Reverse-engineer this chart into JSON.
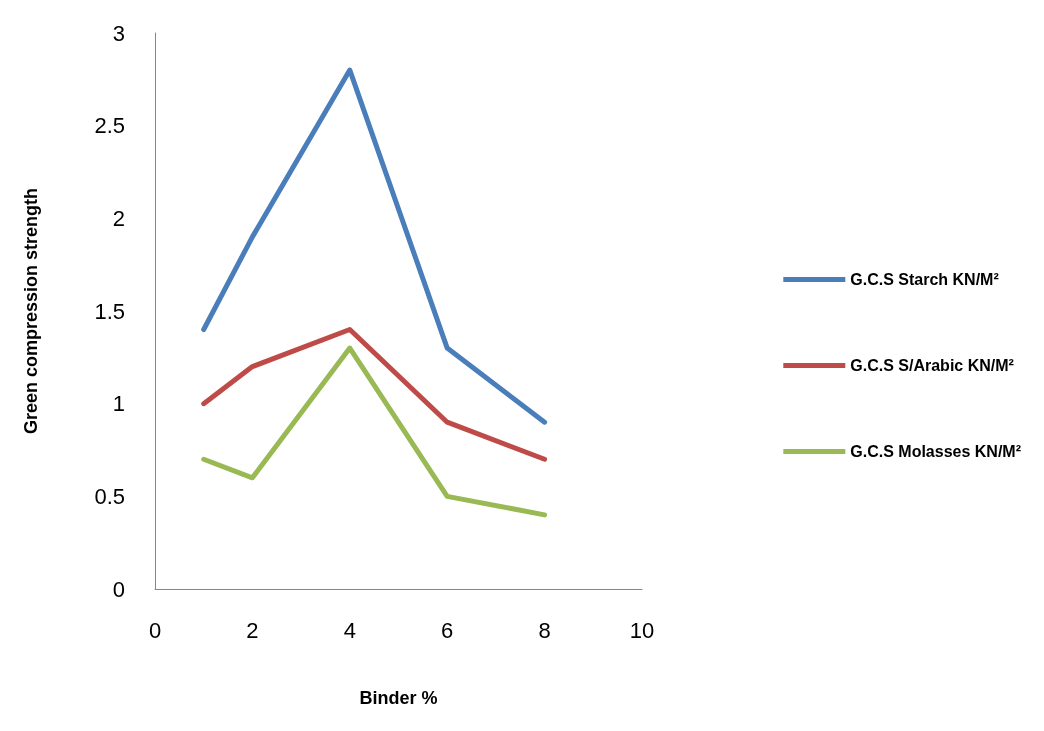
{
  "chart_data": {
    "type": "line",
    "xlabel": "Binder %",
    "ylabel": "Green compression strength",
    "x": [
      1,
      2,
      4,
      6,
      8
    ],
    "series": [
      {
        "name": "G.C.S Starch KN/M²",
        "color": "#4a7ebb",
        "values": [
          1.4,
          1.9,
          2.8,
          1.3,
          0.9
        ]
      },
      {
        "name": "G.C.S S/Arabic KN/M²",
        "color": "#be4b48",
        "values": [
          1.0,
          1.2,
          1.4,
          0.9,
          0.7
        ]
      },
      {
        "name": "G.C.S Molasses KN/M²",
        "color": "#98b954",
        "values": [
          0.7,
          0.6,
          1.3,
          0.5,
          0.4
        ]
      }
    ],
    "xlim": [
      0,
      10
    ],
    "xticks": [
      0,
      2,
      4,
      6,
      8,
      10
    ],
    "ylim": [
      0,
      3
    ],
    "yticks": [
      0,
      0.5,
      1,
      1.5,
      2,
      2.5,
      3
    ],
    "grid": false,
    "legend": "right",
    "marker": "none",
    "line_style": "solid"
  }
}
